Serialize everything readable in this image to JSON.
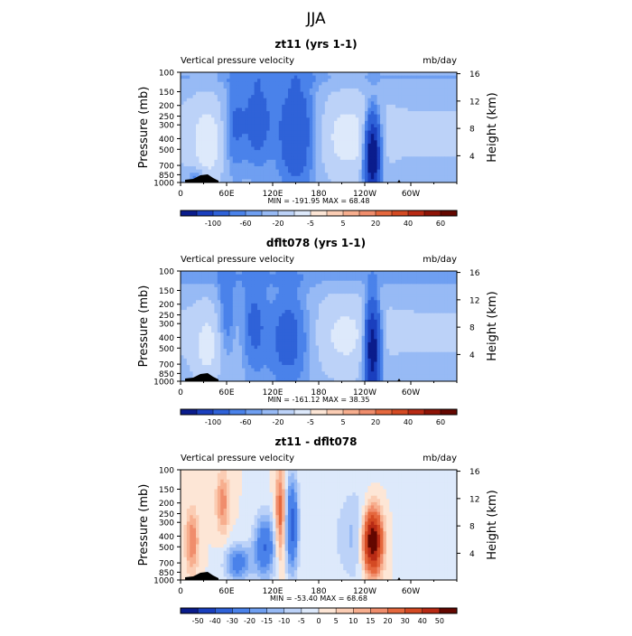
{
  "figure_title": "JJA",
  "chart_data": [
    {
      "type": "heatmap",
      "title": "zt11 (yrs 1-1)",
      "subtitle_left": "Vertical pressure velocity",
      "subtitle_right": "mb/day",
      "ylabel_left": "Pressure (mb)",
      "ylabel_right": "Height (km)",
      "x_ticks": [
        "0",
        "60E",
        "120E",
        "180",
        "120W",
        "60W"
      ],
      "y_ticks": [
        "100",
        "150",
        "200",
        "250",
        "300",
        "400",
        "500",
        "700",
        "850",
        "1000"
      ],
      "y2_ticks": [
        "4",
        "8",
        "12",
        "16"
      ],
      "ylim": [
        1000,
        100
      ],
      "stats_text": "MIN = -191.95   MAX =  68.48",
      "colorbar_levels": [
        -100,
        -60,
        -20,
        -5,
        5,
        20,
        40,
        60
      ],
      "colorbar_colors": [
        "#0a1c8c",
        "#1a3fbe",
        "#2f62d8",
        "#4a82ea",
        "#6f9ff1",
        "#97baf5",
        "#bcd2f8",
        "#dde9fb",
        "#fde6d6",
        "#fbcdb4",
        "#f7ae8e",
        "#f08d6c",
        "#e5683e",
        "#d44a23",
        "#b82a14",
        "#8e1306",
        "#640700"
      ]
    },
    {
      "type": "heatmap",
      "title": "dflt078 (yrs 1-1)",
      "subtitle_left": "Vertical pressure velocity",
      "subtitle_right": "mb/day",
      "ylabel_left": "Pressure (mb)",
      "ylabel_right": "Height (km)",
      "x_ticks": [
        "0",
        "60E",
        "120E",
        "180",
        "120W",
        "60W"
      ],
      "y_ticks": [
        "100",
        "150",
        "200",
        "250",
        "300",
        "400",
        "500",
        "700",
        "850",
        "1000"
      ],
      "y2_ticks": [
        "4",
        "8",
        "12",
        "16"
      ],
      "ylim": [
        1000,
        100
      ],
      "stats_text": "MIN = -161.12   MAX =  38.35",
      "colorbar_levels": [
        -100,
        -60,
        -20,
        -5,
        5,
        20,
        40,
        60
      ],
      "colorbar_colors": [
        "#0a1c8c",
        "#1a3fbe",
        "#2f62d8",
        "#4a82ea",
        "#6f9ff1",
        "#97baf5",
        "#bcd2f8",
        "#dde9fb",
        "#fde6d6",
        "#fbcdb4",
        "#f7ae8e",
        "#f08d6c",
        "#e5683e",
        "#d44a23",
        "#b82a14",
        "#8e1306",
        "#640700"
      ]
    },
    {
      "type": "heatmap",
      "title": "zt11 - dflt078",
      "subtitle_left": "Vertical pressure velocity",
      "subtitle_right": "mb/day",
      "ylabel_left": "Pressure (mb)",
      "ylabel_right": "Height (km)",
      "x_ticks": [
        "0",
        "60E",
        "120E",
        "180",
        "120W",
        "60W"
      ],
      "y_ticks": [
        "100",
        "150",
        "200",
        "250",
        "300",
        "400",
        "500",
        "700",
        "850",
        "1000"
      ],
      "y2_ticks": [
        "4",
        "8",
        "12",
        "16"
      ],
      "ylim": [
        1000,
        100
      ],
      "stats_text": "MIN = -53.40   MAX =  68.68",
      "colorbar_levels": [
        -50,
        -40,
        -30,
        -20,
        -15,
        -10,
        -5,
        0,
        5,
        10,
        15,
        20,
        30,
        40,
        50
      ],
      "colorbar_colors": [
        "#0a1c8c",
        "#1a3fbe",
        "#2f62d8",
        "#4a82ea",
        "#6f9ff1",
        "#97baf5",
        "#bcd2f8",
        "#dde9fb",
        "#fde6d6",
        "#fbcdb4",
        "#f7ae8e",
        "#f08d6c",
        "#e5683e",
        "#d44a23",
        "#b82a14",
        "#640700"
      ]
    }
  ]
}
